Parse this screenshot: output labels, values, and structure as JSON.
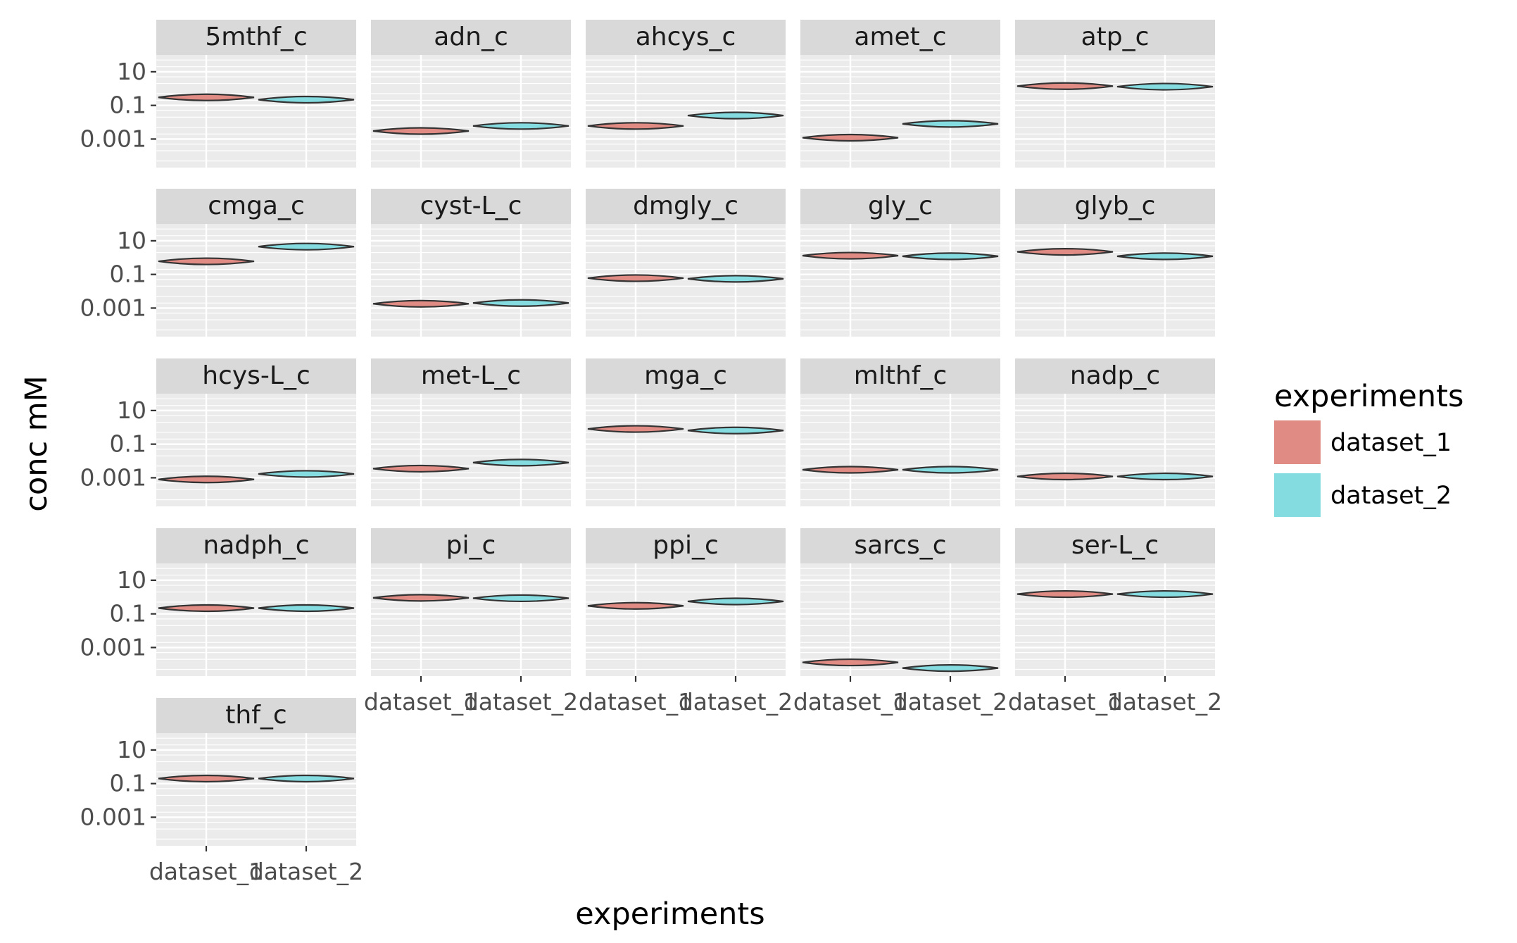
{
  "chart_data": {
    "type": "violin",
    "facet_wrap": true,
    "xlabel": "experiments",
    "ylabel": "conc mM",
    "y_scale": "log10",
    "y_ticks": [
      {
        "value": 10,
        "label": "10"
      },
      {
        "value": 0.1,
        "label": "0.1"
      },
      {
        "value": 0.001,
        "label": "0.001"
      }
    ],
    "ylim": [
      2e-05,
      100
    ],
    "categories": [
      "dataset_1",
      "dataset_2"
    ],
    "legend": {
      "title": "experiments",
      "position": "right",
      "items": [
        {
          "label": "dataset_1",
          "color": "#e08b84"
        },
        {
          "label": "dataset_2",
          "color": "#84dbe0"
        }
      ]
    },
    "colors": {
      "panel_bg": "#ebebeb",
      "strip_bg": "#d9d9d9",
      "grid": "#ffffff",
      "outline": "#333333"
    },
    "panels": [
      {
        "name": "5mthf_c",
        "values": [
          0.3,
          0.22
        ]
      },
      {
        "name": "adn_c",
        "values": [
          0.003,
          0.006
        ]
      },
      {
        "name": "ahcys_c",
        "values": [
          0.006,
          0.025
        ]
      },
      {
        "name": "amet_c",
        "values": [
          0.0012,
          0.008
        ]
      },
      {
        "name": "atp_c",
        "values": [
          1.4,
          1.3
        ]
      },
      {
        "name": "cmga_c",
        "values": [
          0.6,
          4.5
        ]
      },
      {
        "name": "cyst-L_c",
        "values": [
          0.0018,
          0.002
        ]
      },
      {
        "name": "dmgly_c",
        "values": [
          0.06,
          0.055
        ]
      },
      {
        "name": "gly_c",
        "values": [
          1.3,
          1.2
        ]
      },
      {
        "name": "glyb_c",
        "values": [
          2.2,
          1.2
        ]
      },
      {
        "name": "hcys-L_c",
        "values": [
          0.0008,
          0.0017
        ]
      },
      {
        "name": "met-L_c",
        "values": [
          0.0035,
          0.008
        ]
      },
      {
        "name": "mga_c",
        "values": [
          0.8,
          0.65
        ]
      },
      {
        "name": "mlthf_c",
        "values": [
          0.003,
          0.003
        ]
      },
      {
        "name": "nadp_c",
        "values": [
          0.0012,
          0.0012
        ]
      },
      {
        "name": "nadph_c",
        "values": [
          0.22,
          0.22
        ]
      },
      {
        "name": "pi_c",
        "values": [
          0.9,
          0.85
        ]
      },
      {
        "name": "ppi_c",
        "values": [
          0.3,
          0.55
        ]
      },
      {
        "name": "sarcs_c",
        "values": [
          0.00013,
          6e-05
        ]
      },
      {
        "name": "ser-L_c",
        "values": [
          1.5,
          1.5
        ]
      },
      {
        "name": "thf_c",
        "values": [
          0.2,
          0.2
        ]
      }
    ]
  }
}
